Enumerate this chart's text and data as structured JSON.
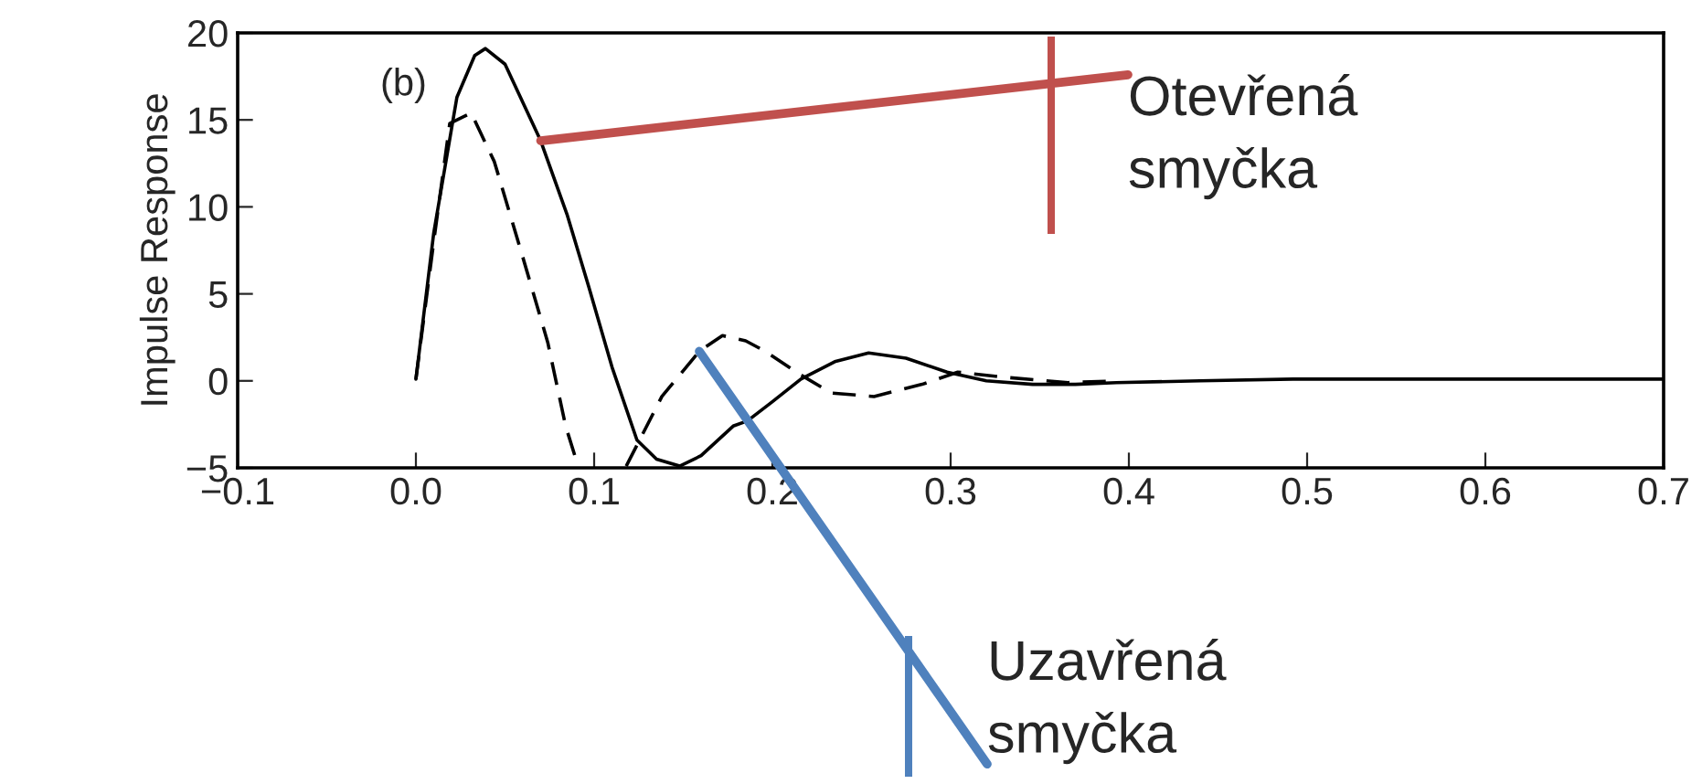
{
  "chart_data": {
    "type": "line",
    "ylabel": "Impulse Response",
    "xlim": [
      -0.1,
      0.7
    ],
    "ylim": [
      -5,
      20
    ],
    "xticks": [
      {
        "value": -0.1,
        "label": "−0.1"
      },
      {
        "value": 0.0,
        "label": "0.0"
      },
      {
        "value": 0.1,
        "label": "0.1"
      },
      {
        "value": 0.2,
        "label": "0.2"
      },
      {
        "value": 0.3,
        "label": "0.3"
      },
      {
        "value": 0.4,
        "label": "0.4"
      },
      {
        "value": 0.5,
        "label": "0.5"
      },
      {
        "value": 0.6,
        "label": "0.6"
      },
      {
        "value": 0.7,
        "label": "0.7"
      }
    ],
    "yticks": [
      {
        "value": -5,
        "label": "−5"
      },
      0,
      5,
      10,
      15,
      20
    ],
    "grid": false,
    "legend": false,
    "series": [
      {
        "color": "#000000",
        "line_style": "solid",
        "x": [
          0.0,
          0.01,
          0.023,
          0.033,
          0.039,
          0.05,
          0.07,
          0.085,
          0.097,
          0.11,
          0.124,
          0.135,
          0.148,
          0.16,
          0.178,
          0.186,
          0.2,
          0.216,
          0.235,
          0.254,
          0.275,
          0.298,
          0.32,
          0.346,
          0.37,
          0.393,
          0.44,
          0.492,
          0.55,
          0.6,
          0.65,
          0.7
        ],
        "values": [
          0.1,
          8.5,
          16.3,
          18.7,
          19.1,
          18.2,
          13.8,
          9.5,
          5.4,
          0.8,
          -3.4,
          -4.5,
          -4.9,
          -4.3,
          -2.6,
          -2.3,
          -1.2,
          0.1,
          1.1,
          1.6,
          1.3,
          0.5,
          0.0,
          -0.2,
          -0.2,
          -0.1,
          0.0,
          0.1,
          0.1,
          0.1,
          0.1,
          0.1
        ]
      },
      {
        "color": "#000000",
        "line_style": "dashed",
        "x": [
          0.0,
          0.01,
          0.019,
          0.031,
          0.044,
          0.06,
          0.074,
          0.084,
          0.091,
          0.1,
          0.118,
          0.138,
          0.159,
          0.172,
          0.185,
          0.196,
          0.215,
          0.233,
          0.257,
          0.284,
          0.304,
          0.331,
          0.366,
          0.393
        ],
        "values": [
          0.1,
          8.0,
          14.8,
          15.4,
          12.6,
          7.1,
          2.2,
          -2.6,
          -4.9,
          null,
          -4.9,
          -0.9,
          1.7,
          2.6,
          2.3,
          1.7,
          0.4,
          -0.7,
          -0.9,
          -0.2,
          0.5,
          0.2,
          -0.1,
          0.0
        ]
      }
    ],
    "annotations": [
      "(b)",
      {
        "text": "Otevřená\nsmyčka",
        "x": 0.07,
        "y": 13.8
      },
      {
        "text": "Uzavřená\nsmyčka",
        "x": 0.159,
        "y": 1.7
      }
    ]
  }
}
